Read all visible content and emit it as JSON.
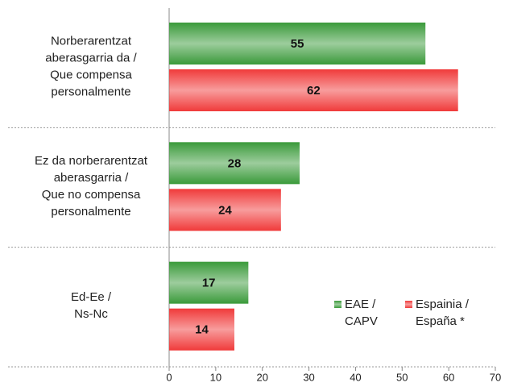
{
  "chart_data": {
    "type": "bar",
    "orientation": "horizontal",
    "categories": [
      [
        "Norberarentzat",
        "aberasgarria da /",
        "Que compensa",
        "personalmente"
      ],
      [
        "Ez da norberarentzat",
        "aberasgarria /",
        "Que no compensa",
        "personalmente"
      ],
      [
        "Ed-Ee /",
        "Ns-Nc"
      ]
    ],
    "series": [
      {
        "name": [
          "EAE /",
          "CAPV"
        ],
        "color": "#3a9a3a",
        "values": [
          55,
          28,
          17
        ]
      },
      {
        "name": [
          "Espainia /",
          "España *"
        ],
        "color": "#f03a3a",
        "values": [
          62,
          24,
          14
        ]
      }
    ],
    "xlim": [
      0,
      70
    ],
    "xticks": [
      0,
      10,
      20,
      30,
      40,
      50,
      60,
      70
    ]
  }
}
